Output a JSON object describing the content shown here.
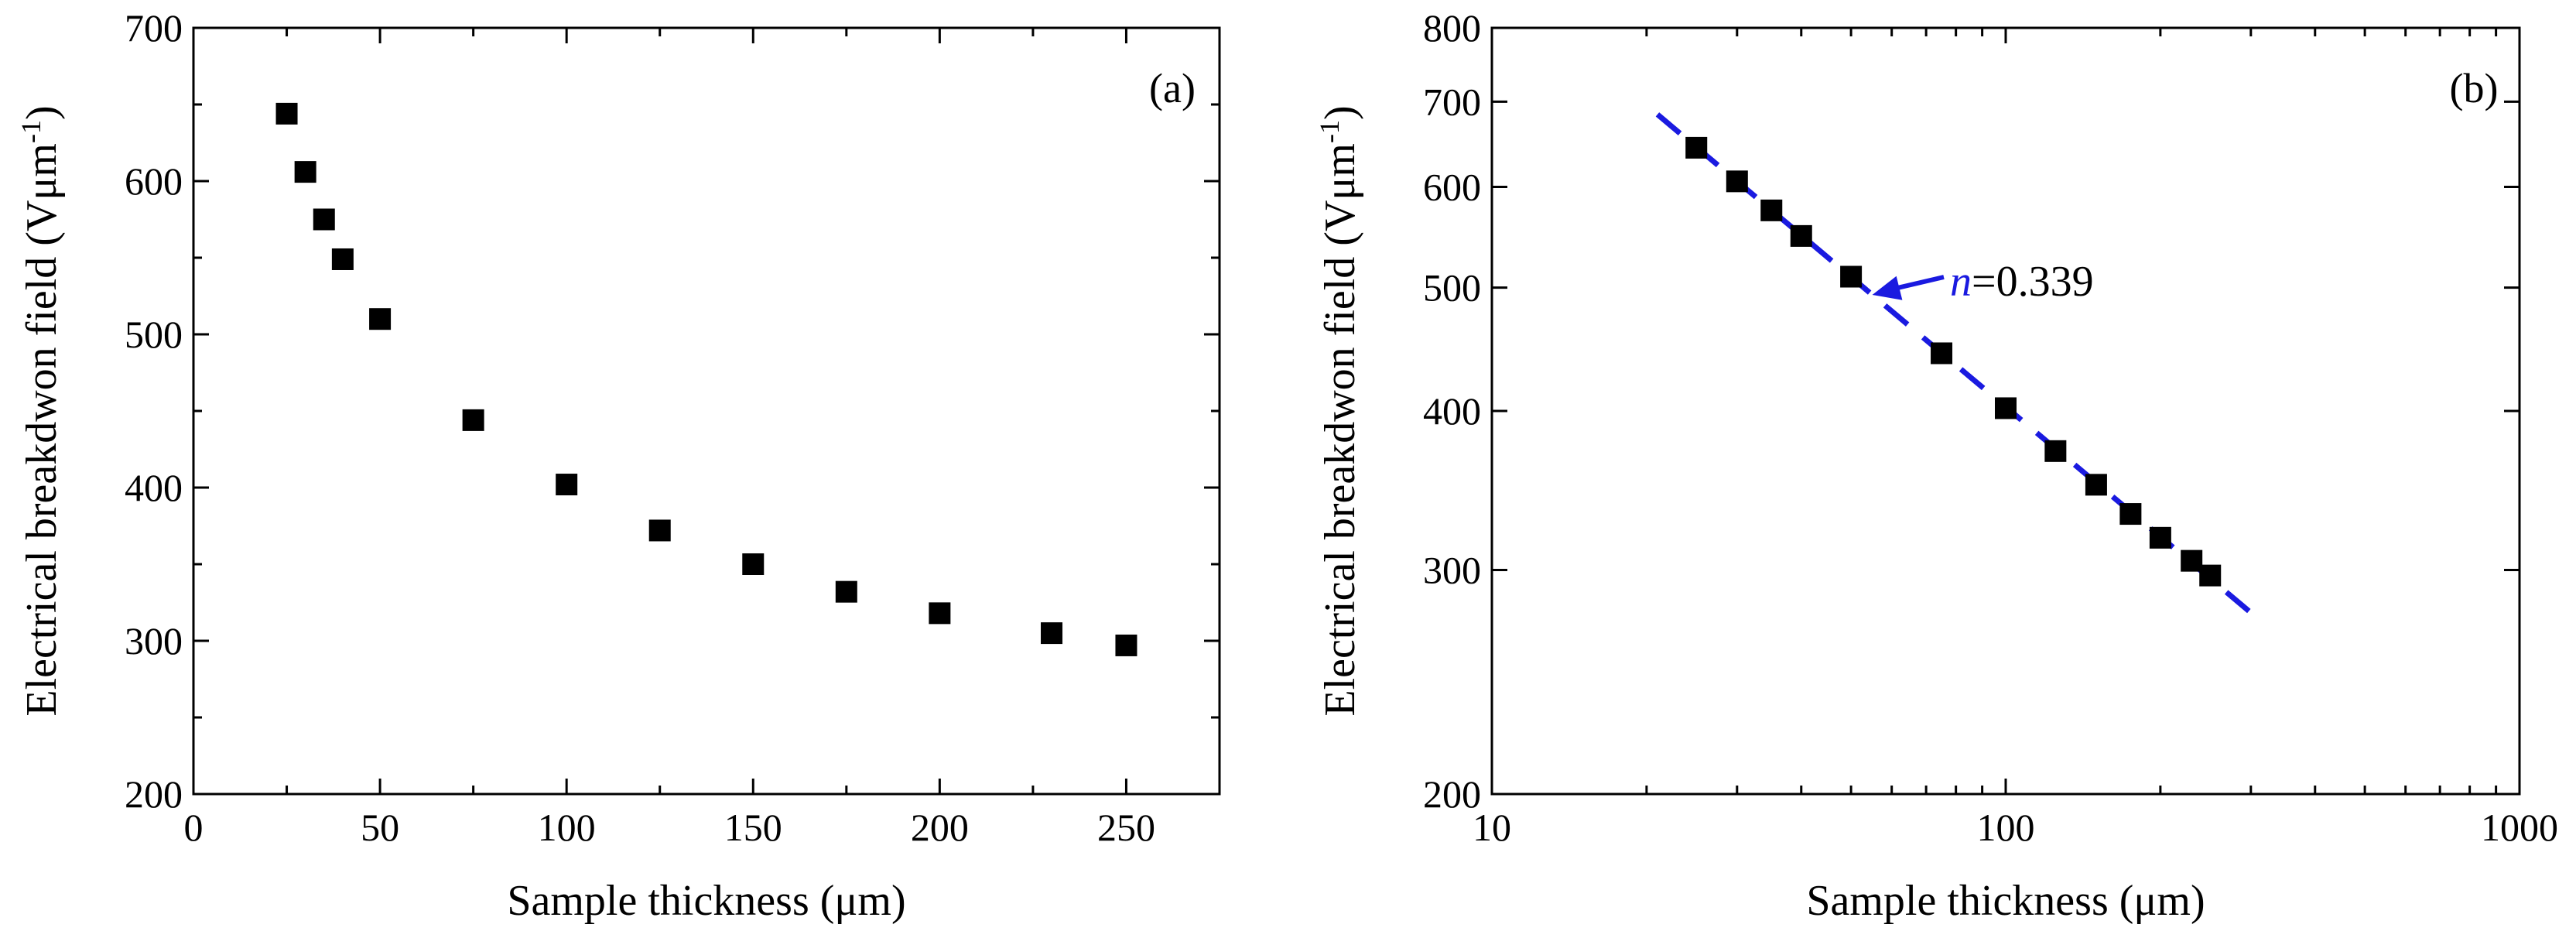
{
  "chart_data": [
    {
      "type": "scatter",
      "panel_label": "(a)",
      "xlabel": "Sample thickness (μm)",
      "ylabel_text": "Electrical breakdwon field (Vμm",
      "ylabel_sup": "-1",
      "ylabel_close": ")",
      "xscale": "linear",
      "yscale": "linear",
      "xlim": [
        0,
        275
      ],
      "ylim": [
        200,
        700
      ],
      "xticks": [
        0,
        50,
        100,
        150,
        200,
        250
      ],
      "xtick_labels": [
        "0",
        "50",
        "100",
        "150",
        "200",
        "250"
      ],
      "yticks": [
        200,
        300,
        400,
        500,
        600,
        700
      ],
      "ytick_labels": [
        "200",
        "300",
        "400",
        "500",
        "600",
        "700"
      ],
      "x": [
        25,
        30,
        35,
        40,
        50,
        75,
        100,
        125,
        150,
        175,
        200,
        230,
        250
      ],
      "y": [
        644,
        606,
        575,
        549,
        510,
        444,
        402,
        372,
        350,
        332,
        318,
        305,
        297
      ],
      "marker": "square",
      "color": "#000000"
    },
    {
      "type": "scatter",
      "panel_label": "(b)",
      "xlabel": "Sample thickness (μm)",
      "ylabel_text": "Electrical breakdwon field (Vμm",
      "ylabel_sup": "-1",
      "ylabel_close": ")",
      "xscale": "log",
      "yscale": "log",
      "xlim": [
        10,
        1000
      ],
      "ylim": [
        200,
        800
      ],
      "xticks": [
        10,
        100,
        1000
      ],
      "xtick_labels": [
        "10",
        "100",
        "1000"
      ],
      "yticks": [
        200,
        300,
        400,
        500,
        600,
        700,
        800
      ],
      "ytick_labels": [
        "200",
        "300",
        "400",
        "500",
        "600",
        "700",
        "800"
      ],
      "x": [
        25,
        30,
        35,
        40,
        50,
        75,
        100,
        125,
        150,
        175,
        200,
        230,
        250
      ],
      "y": [
        644,
        606,
        575,
        549,
        510,
        444,
        402,
        372,
        350,
        332,
        318,
        305,
        297
      ],
      "marker": "square",
      "color": "#000000",
      "fit": {
        "x_range": [
          21,
          310
        ],
        "exponent": -0.339,
        "coefficient": 1920,
        "color": "#1a1ae0",
        "style": "dashed"
      },
      "annotation": {
        "prefix": "n",
        "value": "=0.339",
        "point_to_x": 55,
        "color": "#1a1ae0"
      }
    }
  ]
}
